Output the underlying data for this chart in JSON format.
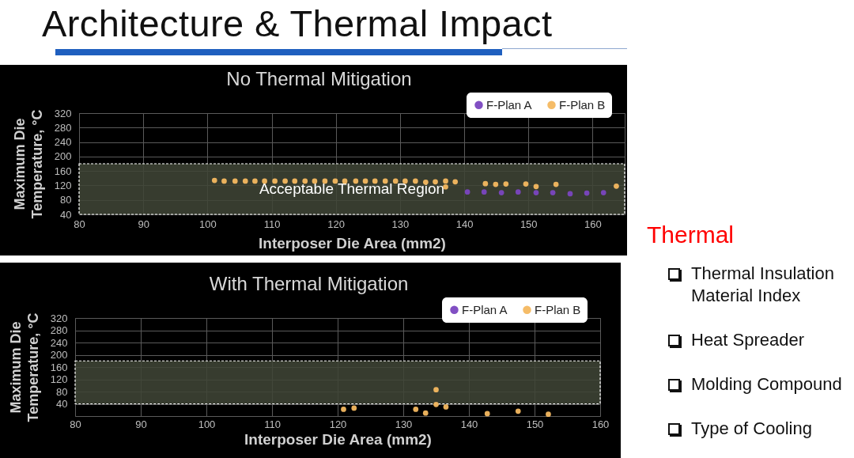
{
  "chart_data": [
    {
      "type": "other",
      "title": "Architecture & Thermal Impact"
    },
    {
      "type": "scatter",
      "title": "No Thermal Mitigation",
      "xlabel": "Interposer Die Area (mm2)",
      "ylabel": "Maximum Die Temperature, °C",
      "series": [
        {
          "name": "F-Plan A",
          "color": "#7a46c0",
          "x": [
            140.5,
            143.1,
            145.8,
            148.4,
            151.2,
            153.8,
            156.5,
            159.1,
            161.7
          ],
          "values": [
            102,
            102,
            100,
            102,
            100,
            100,
            97,
            99,
            100
          ]
        },
        {
          "name": "F-Plan B",
          "color": "#f4b860",
          "x": [
            101.1,
            102.6,
            104.3,
            105.9,
            107.4,
            108.9,
            110.5,
            112.1,
            113.6,
            115.2,
            116.7,
            118.3,
            119.9,
            121.4,
            123.1,
            124.6,
            126.1,
            127.7,
            129.3,
            130.8,
            132.4,
            134.0,
            135.5,
            137.1,
            137.1,
            138.6,
            143.3,
            144.9,
            146.5,
            149.6,
            151.2,
            154.3,
            163.7
          ],
          "values": [
            134,
            132,
            132,
            132,
            132,
            132,
            132,
            132,
            132,
            132,
            132,
            132,
            132,
            132,
            132,
            132,
            132,
            132,
            132,
            132,
            132,
            129,
            130,
            132,
            116,
            130,
            125,
            123,
            124,
            124,
            117,
            123,
            118
          ]
        }
      ],
      "xlim": [
        80,
        165
      ],
      "xticks": [
        80,
        90,
        100,
        110,
        120,
        130,
        140,
        150,
        160
      ],
      "ylim": [
        40,
        320
      ],
      "yticks": [
        40,
        80,
        120,
        160,
        200,
        240,
        280,
        320
      ],
      "bands": [
        {
          "axis": "y",
          "from": 40,
          "to": 180,
          "label": "Acceptable Thermal Region",
          "color": "#3f4436"
        }
      ],
      "grid": true,
      "legend": "top right",
      "marker": "circle"
    },
    {
      "type": "scatter",
      "title": "With Thermal Mitigation",
      "xlabel": "Interposer Die Area (mm2)",
      "ylabel": "Maximum Die Temperature, °C",
      "series": [
        {
          "name": "F-Plan A",
          "color": "#7a46c0"
        },
        {
          "name": "F-Plan B",
          "color": "#f4b860",
          "x": [
            120.9,
            122.5,
            131.9,
            133.4,
            135.0,
            135.0,
            136.5,
            142.8,
            147.5,
            152.1
          ],
          "values": [
            22,
            26,
            22,
            10,
            86,
            38,
            30,
            8,
            16,
            6
          ]
        }
      ],
      "xlim": [
        80,
        160
      ],
      "xticks": [
        80,
        90,
        100,
        110,
        120,
        130,
        140,
        150,
        160
      ],
      "ylim": [
        0,
        320
      ],
      "yticks": [
        40,
        80,
        120,
        160,
        200,
        240,
        280,
        320
      ],
      "bands": [
        {
          "axis": "y",
          "from": 40,
          "to": 180,
          "color": "#3f4436"
        }
      ],
      "grid": true,
      "legend": "top right",
      "marker": "circle"
    },
    {
      "type": "other",
      "title": "Thermal",
      "annotations": [
        "Thermal Insulation Material Index",
        "Heat Spreader",
        "Molding Compound",
        "Type of Cooling"
      ]
    }
  ]
}
